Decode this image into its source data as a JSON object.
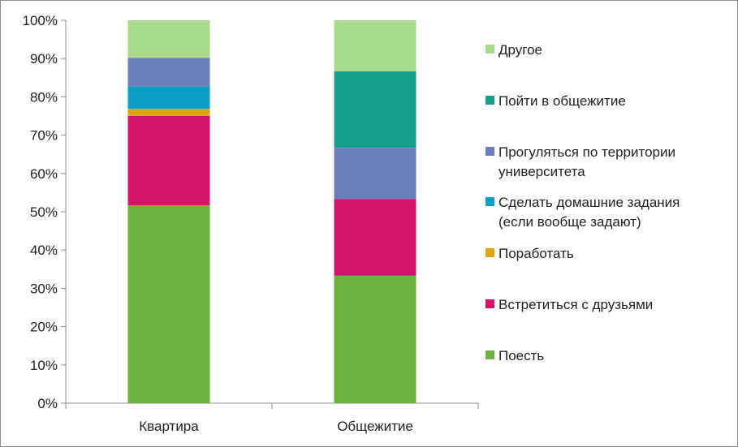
{
  "chart_data": {
    "type": "bar",
    "stacked": true,
    "percent": true,
    "categories": [
      "Квартира",
      "Общежитие"
    ],
    "series": [
      {
        "name": "Поесть",
        "color": "#6db33f",
        "values": [
          51.7,
          33.3
        ]
      },
      {
        "name": "Встретиться с друзьями",
        "color": "#d4146b",
        "values": [
          23.3,
          20.0
        ]
      },
      {
        "name": "Поработать",
        "color": "#e0a40e",
        "values": [
          1.9,
          0.0
        ]
      },
      {
        "name": "Сделать домашние задания (если вообще задают)",
        "color": "#0a9fc8",
        "values": [
          5.8,
          0.0
        ]
      },
      {
        "name": "Прогуляться по территории университета",
        "color": "#6a7fba",
        "values": [
          7.5,
          13.4
        ]
      },
      {
        "name": "Пойти в общежитие",
        "color": "#17a08a",
        "values": [
          0.0,
          20.0
        ]
      },
      {
        "name": "Другое",
        "color": "#a8dc8a",
        "values": [
          9.8,
          13.3
        ]
      }
    ],
    "legend_order": [
      "Другое",
      "Пойти в общежитие",
      "Прогуляться по территории университета",
      "Сделать домашние задания (если вообще задают)",
      "Поработать",
      "Встретиться с друзьями",
      "Поесть"
    ],
    "legend_lines": {
      "Другое": [
        "Другое"
      ],
      "Пойти в общежитие": [
        "Пойти в общежитие"
      ],
      "Прогуляться по территории университета": [
        "Прогуляться по территории",
        "университета"
      ],
      "Сделать домашние задания (если вообще задают)": [
        "Сделать домашние задания",
        "(если вообще задают)"
      ],
      "Поработать": [
        "Поработать"
      ],
      "Встретиться с друзьями": [
        "Встретиться с друзьями"
      ],
      "Поесть": [
        "Поесть"
      ]
    },
    "yticks": [
      "0%",
      "10%",
      "20%",
      "30%",
      "40%",
      "50%",
      "60%",
      "70%",
      "80%",
      "90%",
      "100%"
    ],
    "ylim": [
      0,
      100
    ],
    "legend_position": "right",
    "grid": false,
    "title": "",
    "xlabel": "",
    "ylabel": ""
  }
}
